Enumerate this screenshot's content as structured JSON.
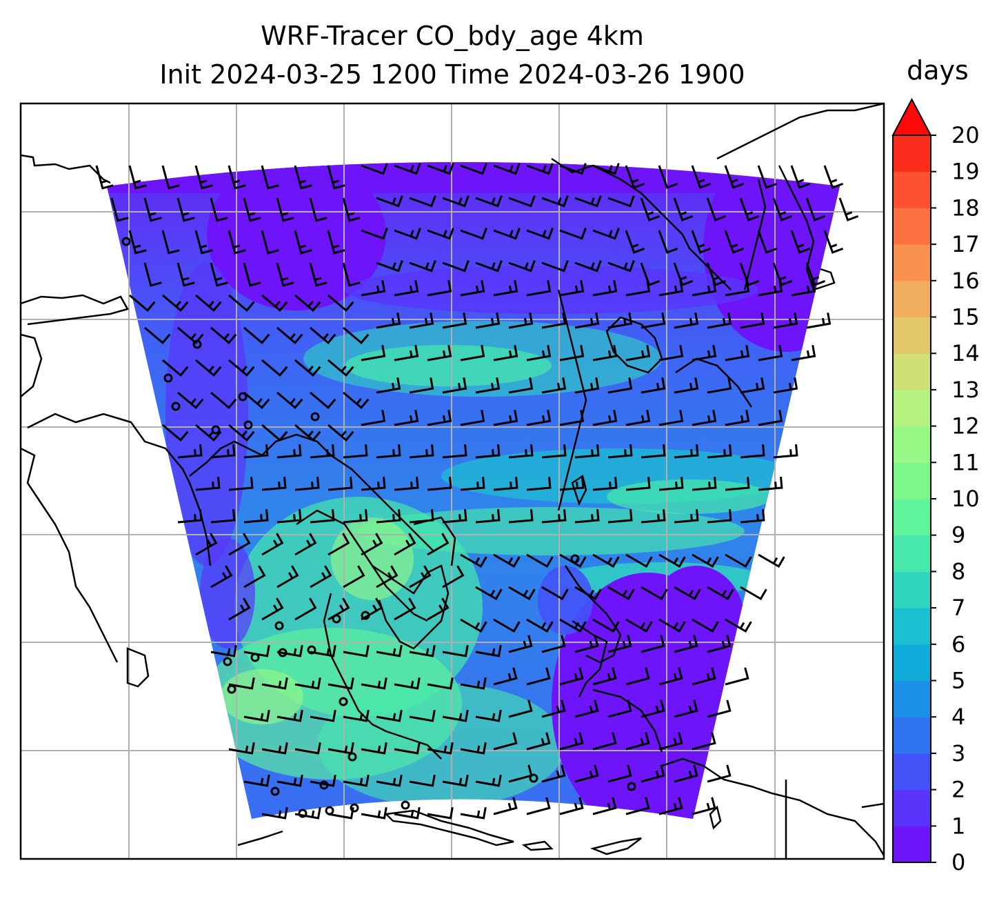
{
  "title": {
    "line1": "WRF-Tracer CO_bdy_age 4km",
    "line2": "Init 2024-03-25 1200 Time 2024-03-26 1900"
  },
  "colorbar": {
    "units": "days",
    "min": 0,
    "max": 20,
    "ticks": [
      "0",
      "1",
      "2",
      "3",
      "4",
      "5",
      "6",
      "7",
      "8",
      "9",
      "10",
      "11",
      "12",
      "13",
      "14",
      "15",
      "16",
      "17",
      "18",
      "19",
      "20"
    ],
    "extend": "max",
    "colors": [
      "#6e14f8",
      "#5a34fb",
      "#4353f8",
      "#2e73f0",
      "#1a90e6",
      "#0fabd9",
      "#1cc1d1",
      "#2fd6c0",
      "#46e8ab",
      "#5ff39b",
      "#7cf88d",
      "#98f886",
      "#b5f27f",
      "#cfe077",
      "#e2c869",
      "#f1ad5e",
      "#f99150",
      "#fc7241",
      "#fd5131",
      "#fd2d1e",
      "#fc0a0a"
    ]
  },
  "map": {
    "gridlines": true,
    "field": "CO_bdy_age",
    "level": "4km"
  }
}
